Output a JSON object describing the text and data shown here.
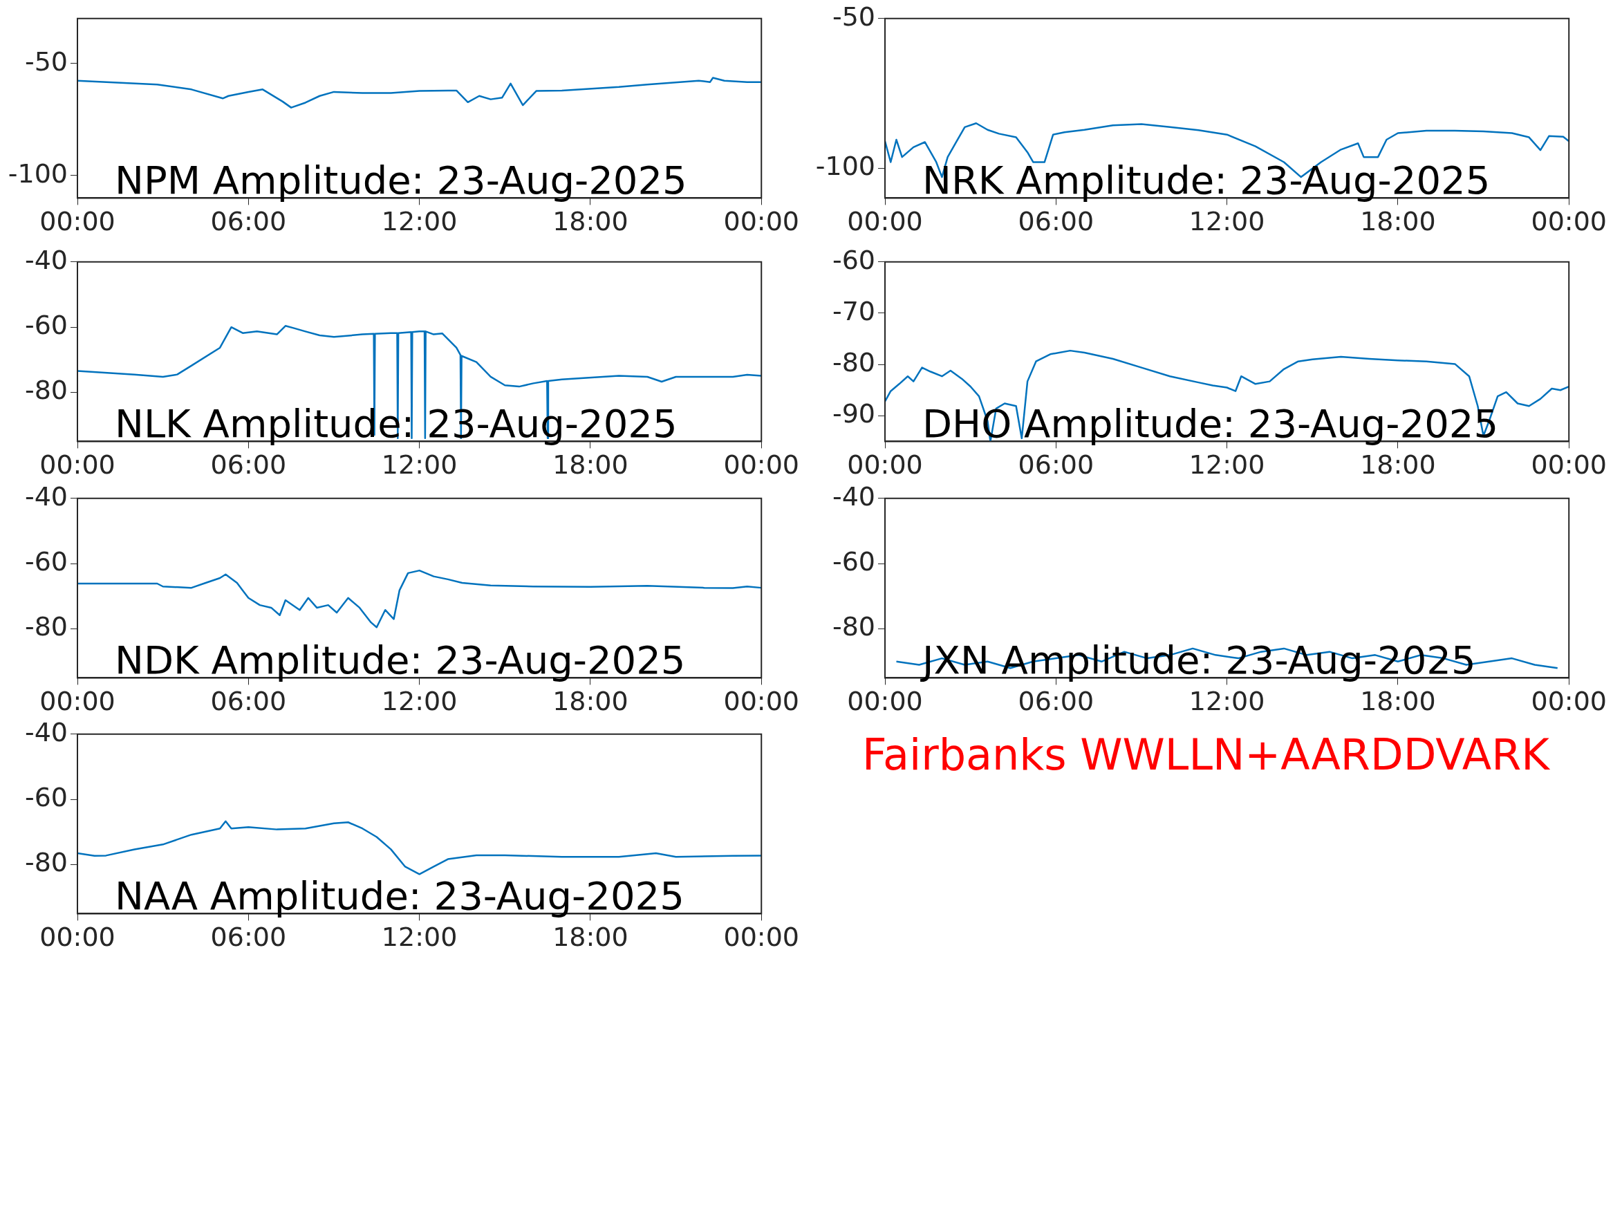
{
  "chart_data": [
    {
      "type": "line",
      "title": "NPM Amplitude: 23-Aug-2025",
      "color": "#0072bd",
      "xlim": [
        0,
        24
      ],
      "xticks": [
        {
          "value": 0,
          "label": "00:00"
        },
        {
          "value": 6,
          "label": "06:00"
        },
        {
          "value": 12,
          "label": "12:00"
        },
        {
          "value": 18,
          "label": "18:00"
        },
        {
          "value": 24,
          "label": "00:00"
        }
      ],
      "ylim": [
        -110,
        -30
      ],
      "yticks": [
        -100,
        -50
      ],
      "grid": false,
      "x": [
        0,
        2.8,
        4,
        5.1,
        5.3,
        6,
        6.5,
        7.2,
        7.5,
        8,
        8.5,
        9,
        10,
        11,
        12,
        13,
        13.3,
        13.7,
        14.1,
        14.5,
        14.9,
        15.2,
        15.63,
        16.1,
        17,
        19,
        20,
        21.8,
        22.2,
        22.3,
        22.7,
        23.5,
        24
      ],
      "values": [
        -57.7,
        -59.4,
        -61.6,
        -65.6,
        -64.5,
        -62.7,
        -61.6,
        -67,
        -69.7,
        -67.5,
        -64.5,
        -62.7,
        -63.2,
        -63.2,
        -62.3,
        -62.1,
        -62.1,
        -67.3,
        -64.5,
        -66,
        -65.3,
        -59,
        -68.6,
        -62.3,
        -62.1,
        -60.5,
        -59.4,
        -57.7,
        -58.3,
        -56.4,
        -57.7,
        -58.3,
        -58.3
      ]
    },
    {
      "type": "line",
      "title": "NRK Amplitude: 23-Aug-2025",
      "color": "#0072bd",
      "xlim": [
        0,
        24
      ],
      "xticks": [
        {
          "value": 0,
          "label": "00:00"
        },
        {
          "value": 6,
          "label": "06:00"
        },
        {
          "value": 12,
          "label": "12:00"
        },
        {
          "value": 18,
          "label": "18:00"
        },
        {
          "value": 24,
          "label": "00:00"
        }
      ],
      "ylim": [
        -110,
        -50
      ],
      "yticks": [
        -100,
        -50
      ],
      "grid": false,
      "x": [
        0,
        0.2,
        0.4,
        0.6,
        0.8,
        1,
        1.2,
        1.4,
        1.6,
        1.8,
        2,
        2.2,
        2.5,
        2.8,
        3.2,
        3.6,
        4,
        4.6,
        5,
        5.2,
        5.4,
        5.6,
        5.9,
        6.3,
        7,
        8,
        9,
        10,
        11,
        12,
        13,
        14,
        14.4,
        14.6,
        14.9,
        15.3,
        16,
        16.6,
        16.8,
        17.1,
        17.3,
        17.6,
        18,
        19,
        20,
        21,
        22,
        22.6,
        23,
        23.3,
        23.8,
        24
      ],
      "values": [
        -91,
        -98,
        -90.5,
        -96.3,
        null,
        -93,
        null,
        -91.3,
        null,
        -98,
        -103,
        -96.3,
        -91.3,
        -86.3,
        -85,
        -87.2,
        -88.5,
        -89.7,
        -94.7,
        -98,
        null,
        -98,
        -88.8,
        -88,
        -87.2,
        -85.7,
        -85.3,
        -86.3,
        -87.3,
        -88.8,
        -92.7,
        -98,
        null,
        -103,
        null,
        -98,
        -93.8,
        -91.7,
        -96.3,
        null,
        -96.3,
        -90.5,
        -88.3,
        -87.5,
        -87.5,
        -87.7,
        -88.3,
        -89.7,
        -94,
        -89.3,
        -89.5,
        -91
      ]
    },
    {
      "type": "line",
      "title": "NLK Amplitude: 23-Aug-2025",
      "color": "#0072bd",
      "xlim": [
        0,
        24
      ],
      "xticks": [
        {
          "value": 0,
          "label": "00:00"
        },
        {
          "value": 6,
          "label": "06:00"
        },
        {
          "value": 12,
          "label": "12:00"
        },
        {
          "value": 18,
          "label": "18:00"
        },
        {
          "value": 24,
          "label": "00:00"
        }
      ],
      "ylim": [
        -95,
        -40
      ],
      "yticks": [
        -80,
        -60,
        -40
      ],
      "grid": false,
      "x": [
        0,
        2,
        3,
        3.5,
        4,
        5,
        5.4,
        5.8,
        6.3,
        7,
        7.3,
        7.6,
        8,
        8.5,
        9,
        10,
        10.4,
        10.42,
        10.44,
        11,
        11.22,
        11.24,
        11.26,
        11.71,
        11.73,
        11.75,
        12,
        12.18,
        12.2,
        12.22,
        12.5,
        12.8,
        13.3,
        13.44,
        13.46,
        13.48,
        14,
        14.5,
        15,
        15.5,
        16,
        16.48,
        16.5,
        16.52,
        17,
        19,
        20,
        20.5,
        21,
        23,
        23.5,
        24
      ],
      "values": [
        -73.4,
        -74.5,
        -75.2,
        -74.5,
        -71.8,
        -66.3,
        -60,
        -61.8,
        -61.3,
        -62.2,
        -59.6,
        -60.3,
        -61.3,
        -62.5,
        -63,
        -62.2,
        -62,
        -93,
        -62,
        -61.8,
        -61.8,
        -94,
        -61.8,
        -61.5,
        -94,
        -61.5,
        -61.3,
        -61.3,
        -94,
        -61.3,
        -62.2,
        -61.9,
        -66.3,
        -68.5,
        -94,
        -68.8,
        -70.7,
        -75.2,
        -77.8,
        -78.2,
        -77.2,
        -76.5,
        -94,
        -76.5,
        -76,
        -74.9,
        -75.2,
        -76.7,
        -75.2,
        -75.2,
        -74.6,
        -74.9
      ]
    },
    {
      "type": "line",
      "title": "DHO Amplitude: 23-Aug-2025",
      "color": "#0072bd",
      "xlim": [
        0,
        24
      ],
      "xticks": [
        {
          "value": 0,
          "label": "00:00"
        },
        {
          "value": 6,
          "label": "06:00"
        },
        {
          "value": 12,
          "label": "12:00"
        },
        {
          "value": 18,
          "label": "18:00"
        },
        {
          "value": 24,
          "label": "00:00"
        }
      ],
      "ylim": [
        -95,
        -60
      ],
      "yticks": [
        -90,
        -80,
        -70,
        -60
      ],
      "grid": false,
      "x": [
        0,
        0.2,
        0.5,
        0.8,
        1,
        1.3,
        1.6,
        2,
        2.3,
        2.7,
        3,
        3.3,
        3.6,
        3.7,
        3.9,
        4.2,
        4.6,
        4.8,
        5,
        5.3,
        5.8,
        6.5,
        7,
        8,
        9,
        10,
        11,
        11.5,
        12,
        12.3,
        12.5,
        13,
        13.5,
        14,
        14.5,
        15,
        16,
        17,
        18,
        19,
        20,
        20.5,
        20.8,
        21,
        21.2,
        21.5,
        21.8,
        22.2,
        22.6,
        23,
        23.4,
        23.7,
        24
      ],
      "values": [
        -87.2,
        -85.2,
        -83.8,
        -82.3,
        -83.3,
        -80.6,
        -81.4,
        -82.3,
        -81.2,
        -82.8,
        -84.3,
        -86.2,
        -91,
        -95,
        -88.6,
        -87.6,
        -88.1,
        -94.4,
        -83.3,
        -79.4,
        -78,
        -77.3,
        -77.7,
        -78.9,
        -80.6,
        -82.3,
        -83.5,
        -84.1,
        -84.5,
        -85.2,
        -82.3,
        -83.8,
        -83.3,
        -80.9,
        -79.4,
        -79,
        -78.5,
        -78.9,
        -79.2,
        -79.4,
        -79.9,
        -82.3,
        -88.1,
        -93.9,
        -91,
        -86.2,
        -85.4,
        -87.6,
        -88.1,
        -86.7,
        -84.7,
        -85,
        -84.3
      ]
    },
    {
      "type": "line",
      "title": "NDK Amplitude: 23-Aug-2025",
      "color": "#0072bd",
      "xlim": [
        0,
        24
      ],
      "xticks": [
        {
          "value": 0,
          "label": "00:00"
        },
        {
          "value": 6,
          "label": "06:00"
        },
        {
          "value": 12,
          "label": "12:00"
        },
        {
          "value": 18,
          "label": "18:00"
        },
        {
          "value": 24,
          "label": "00:00"
        }
      ],
      "ylim": [
        -95,
        -40
      ],
      "yticks": [
        -80,
        -60,
        -40
      ],
      "grid": false,
      "x": [
        0,
        2,
        2.8,
        3,
        4,
        4.5,
        5,
        5.2,
        5.6,
        5.8,
        6,
        6.4,
        6.8,
        7.1,
        7.3,
        7.8,
        8.1,
        8.4,
        8.8,
        9.1,
        9.5,
        9.9,
        10.3,
        10.5,
        10.8,
        11.1,
        11.3,
        11.6,
        12,
        12.5,
        13,
        13.5,
        14.5,
        16,
        18,
        20,
        22,
        23,
        23.5,
        24
      ],
      "values": [
        -66.1,
        -66.1,
        -66.1,
        -67,
        -67.4,
        -65.9,
        -64.4,
        -63.3,
        -65.9,
        -68.2,
        -70.5,
        -72.7,
        -73.5,
        -75.8,
        -71.2,
        -74.2,
        -70.5,
        -73.5,
        -72.7,
        -75,
        -70.5,
        -73.5,
        -78,
        -79.5,
        -74.2,
        -77,
        -68.2,
        -62.9,
        -62.1,
        -63.9,
        -64.8,
        -65.9,
        -66.7,
        -67,
        -67.1,
        -66.8,
        -67.4,
        -67.5,
        -67,
        -67.4
      ]
    },
    {
      "type": "line",
      "title": "JXN Amplitude: 23-Aug-2025",
      "color": "#0072bd",
      "xlim": [
        0,
        24
      ],
      "xticks": [
        {
          "value": 0,
          "label": "00:00"
        },
        {
          "value": 6,
          "label": "06:00"
        },
        {
          "value": 12,
          "label": "12:00"
        },
        {
          "value": 18,
          "label": "18:00"
        },
        {
          "value": 24,
          "label": "00:00"
        }
      ],
      "ylim": [
        -95,
        -40
      ],
      "yticks": [
        -80,
        -60,
        -40
      ],
      "grid": false,
      "x": [
        0.4,
        0.8,
        1.2,
        1.6,
        2,
        2.4,
        2.8,
        3.2,
        3.6,
        4,
        4.4,
        4.8,
        5.2,
        5.6,
        6,
        6.4,
        6.8,
        7.2,
        7.6,
        8,
        8.4,
        8.8,
        9.2,
        9.6,
        10,
        10.4,
        10.8,
        11.2,
        11.6,
        12,
        12.4,
        12.8,
        13.2,
        13.6,
        14,
        14.4,
        14.8,
        15.2,
        15.6,
        16,
        16.4,
        16.8,
        17.2,
        17.6,
        18,
        18.4,
        18.8,
        19.2,
        19.6,
        20,
        20.4,
        20.8,
        21.2,
        21.6,
        22,
        22.4,
        22.8,
        23.2,
        23.6
      ],
      "values": [
        -90,
        null,
        -91,
        null,
        -89,
        null,
        -91,
        null,
        -90,
        null,
        -92,
        null,
        -90,
        null,
        -89,
        null,
        -88,
        null,
        -90,
        null,
        -87,
        null,
        -89,
        null,
        -88,
        null,
        -86,
        null,
        -88,
        null,
        -89,
        null,
        -87,
        null,
        -86,
        null,
        -88,
        null,
        -87,
        null,
        -89,
        null,
        -88,
        null,
        -90,
        null,
        -88,
        null,
        -89,
        null,
        -91,
        null,
        -90,
        null,
        -89,
        null,
        -91,
        null,
        -92
      ]
    },
    {
      "type": "line",
      "title": "NAA Amplitude: 23-Aug-2025",
      "color": "#0072bd",
      "xlim": [
        0,
        24
      ],
      "xticks": [
        {
          "value": 0,
          "label": "00:00"
        },
        {
          "value": 6,
          "label": "06:00"
        },
        {
          "value": 12,
          "label": "12:00"
        },
        {
          "value": 18,
          "label": "18:00"
        },
        {
          "value": 24,
          "label": "00:00"
        }
      ],
      "ylim": [
        -95,
        -40
      ],
      "yticks": [
        -80,
        -60,
        -40
      ],
      "grid": false,
      "x": [
        0,
        0.6,
        1,
        2,
        3,
        4,
        5,
        5.2,
        5.4,
        6,
        7,
        8,
        9,
        9.5,
        10,
        10.5,
        11,
        11.5,
        12,
        12.5,
        13,
        14,
        15,
        17,
        19,
        20.3,
        21,
        23,
        24
      ],
      "values": [
        -76.5,
        -77.3,
        -77.2,
        -75.3,
        -73.8,
        -70.8,
        -68.9,
        -66.7,
        -68.9,
        -68.5,
        -69.2,
        -68.9,
        -67.3,
        -67,
        -68.9,
        -71.5,
        -75.3,
        -80.6,
        -82.9,
        -80.6,
        -78.3,
        -77.1,
        -77.1,
        -77.6,
        -77.6,
        -76.5,
        -77.6,
        -77.3,
        -77.2
      ]
    },
    {
      "type": "other",
      "title": "Fairbanks WWLLN+AARDDVARK",
      "color": "#ff0000"
    }
  ]
}
